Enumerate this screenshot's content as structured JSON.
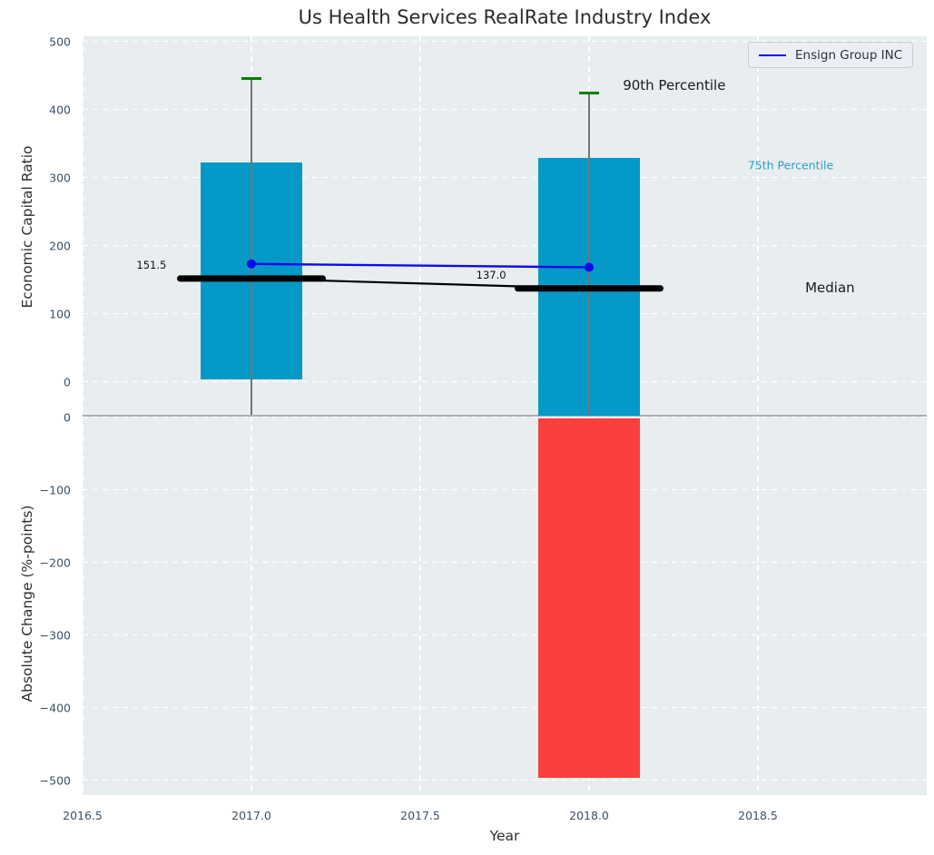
{
  "colors": {
    "box": "#0599c7",
    "negative_bar": "#fb3e3e",
    "whisker_cap_green": "#008000",
    "whisker_line": "#757575",
    "series_line": "#0b0bee",
    "median_line": "#000000",
    "axes_background": "#e8edef",
    "grid": "#ffffff",
    "tick_label": "#3d5166",
    "zero_baseline": "#aeaeae",
    "percentile75_label": "#2e9fc9"
  },
  "chart_data": {
    "type": "box+line+bar",
    "title": "Us Health Services RealRate Industry Index",
    "xlabel": "Year",
    "xlim": [
      2016.5,
      2019.0
    ],
    "x_tick_values": [
      2016.5,
      2017.0,
      2017.5,
      2018.0,
      2018.5
    ],
    "x_tick_labels": [
      "2016.5",
      "2017.0",
      "2017.5",
      "2018.0",
      "2018.5"
    ],
    "grid": "white dashed on light gray background",
    "legend_position": "upper right",
    "top_panel": {
      "ylabel": "Economic Capital Ratio",
      "ylim": [
        -50,
        507
      ],
      "y_tick_values": [
        0,
        100,
        200,
        300,
        400,
        500
      ],
      "y_tick_labels": [
        "0",
        "100",
        "200",
        "300",
        "400",
        "500"
      ]
    },
    "bottom_panel": {
      "ylabel": "Absolute Change (%-points)",
      "ylim": [
        -520,
        0
      ],
      "y_tick_values": [
        0,
        -100,
        -200,
        -300,
        -400,
        -500
      ],
      "y_tick_labels": [
        "0",
        "−100",
        "−200",
        "−300",
        "−400",
        "−500"
      ]
    },
    "boxes": [
      {
        "year": 2017,
        "p25": 3,
        "p75": 322,
        "p90": 445,
        "median": 151.5,
        "median_label": "151.5",
        "label_x": 2016.704,
        "label_y": 171
      },
      {
        "year": 2018,
        "p25": null,
        "p75": 329,
        "p90": 424,
        "median": 137.0,
        "median_label": "137.0",
        "label_x": 2017.71,
        "label_y": 157
      }
    ],
    "series": [
      {
        "name": "Ensign Group INC",
        "points": [
          [
            2017,
            173
          ],
          [
            2018,
            168
          ]
        ]
      }
    ],
    "negative_bars": [
      {
        "year": 2018,
        "value": -497
      }
    ],
    "annotations": [
      {
        "text": "90th Percentile",
        "x": 2018.1,
        "y": 435,
        "anchor": "left",
        "size": 15,
        "color": "#1a1a1a"
      },
      {
        "text": "75th Percentile",
        "x": 2018.47,
        "y": 318,
        "anchor": "left",
        "size": 12.5,
        "color": "#2e9fc9"
      },
      {
        "text": "Median",
        "x": 2018.64,
        "y": 138,
        "anchor": "left",
        "size": 15,
        "color": "#1a1a1a"
      }
    ]
  }
}
